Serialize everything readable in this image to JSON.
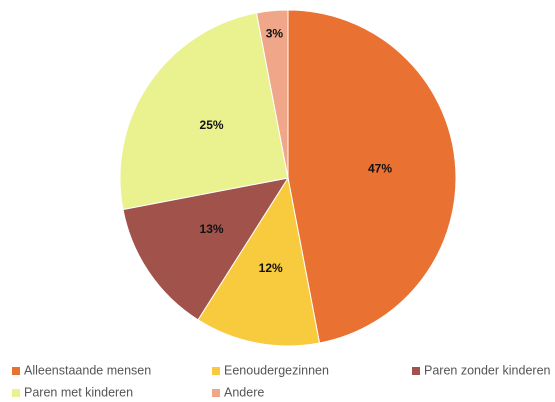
{
  "chart_data": {
    "type": "pie",
    "categories": [
      "Alleenstaande mensen",
      "Eenoudergezinnen",
      "Paren zonder kinderen",
      "Paren met kinderen",
      "Andere"
    ],
    "values": [
      47,
      12,
      13,
      25,
      3
    ],
    "value_labels": [
      "47%",
      "12%",
      "13%",
      "25%",
      "3%"
    ],
    "colors": [
      "#e97132",
      "#f7cb3d",
      "#a0524b",
      "#e9f28e",
      "#f0a688"
    ]
  }
}
